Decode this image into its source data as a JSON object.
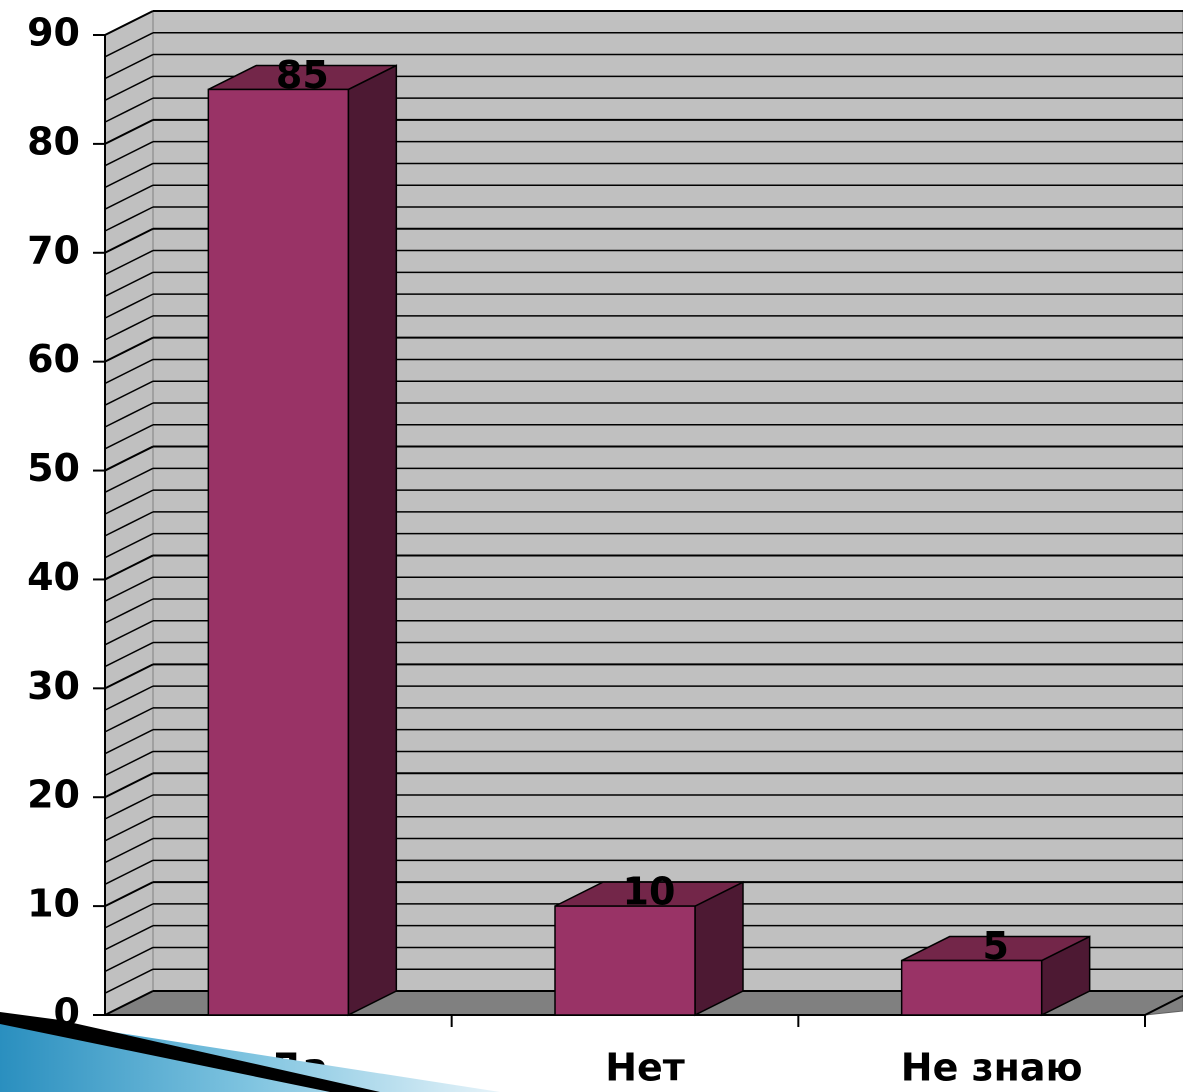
{
  "chart_data": {
    "type": "bar",
    "categories": [
      "Да",
      "Нет",
      "Не знаю"
    ],
    "values": [
      85,
      10,
      5
    ],
    "color": "#993366",
    "ylim": [
      0,
      90
    ],
    "yticks": [
      0,
      10,
      20,
      30,
      40,
      50,
      60,
      70,
      80,
      90
    ],
    "grid": true
  }
}
